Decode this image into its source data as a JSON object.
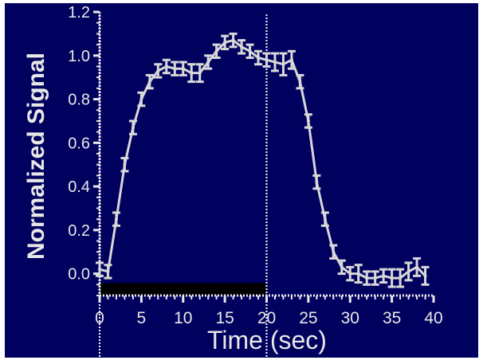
{
  "colors": {
    "background": "#00005f",
    "border": "#ffffff",
    "axis": "#e8e8e8",
    "series": "#d8d8d8",
    "stimulus_bar": "#000000",
    "marker_line": "#ffffff"
  },
  "chart_data": {
    "type": "line",
    "title": "",
    "xlabel": "Time  (sec)",
    "ylabel": "Normalized Signal",
    "xlim": [
      0,
      40
    ],
    "ylim": [
      -0.1,
      1.2
    ],
    "xticks": [
      0,
      5,
      10,
      15,
      20,
      25,
      30,
      35,
      40
    ],
    "yticks": [
      0.0,
      0.2,
      0.4,
      0.6,
      0.8,
      1.0,
      1.2
    ],
    "ytick_labels": [
      "0.0",
      "0.2",
      "0.4",
      "0.6",
      "0.8",
      "1.0",
      "1.2"
    ],
    "grid": false,
    "legend": "none",
    "stimulus": {
      "start": 0,
      "end": 20,
      "y_from": -0.1,
      "y_to": -0.05
    },
    "marker_lines_x": [
      0,
      20
    ],
    "series": [
      {
        "x": [
          0,
          1,
          2,
          3,
          4,
          5,
          6,
          7,
          8,
          9,
          10,
          11,
          12,
          13,
          14,
          15,
          16,
          17,
          18,
          19,
          20,
          21,
          22,
          23,
          24,
          25,
          26,
          27,
          28,
          29,
          30,
          31,
          32,
          33,
          34,
          35,
          36,
          37,
          38,
          39
        ],
        "values": [
          0.02,
          0.01,
          0.25,
          0.5,
          0.67,
          0.8,
          0.88,
          0.93,
          0.95,
          0.94,
          0.94,
          0.92,
          0.92,
          0.97,
          1.02,
          1.06,
          1.07,
          1.04,
          1.02,
          0.99,
          0.98,
          0.97,
          0.96,
          0.98,
          0.88,
          0.7,
          0.42,
          0.25,
          0.1,
          0.03,
          0.0,
          0.0,
          -0.02,
          -0.02,
          -0.01,
          -0.02,
          -0.02,
          0.01,
          0.03,
          -0.01
        ],
        "errors": [
          0.03,
          0.03,
          0.03,
          0.03,
          0.03,
          0.03,
          0.03,
          0.03,
          0.03,
          0.03,
          0.03,
          0.04,
          0.04,
          0.03,
          0.03,
          0.03,
          0.03,
          0.03,
          0.03,
          0.03,
          0.03,
          0.04,
          0.05,
          0.04,
          0.03,
          0.03,
          0.03,
          0.03,
          0.03,
          0.03,
          0.03,
          0.04,
          0.03,
          0.03,
          0.03,
          0.04,
          0.04,
          0.04,
          0.04,
          0.04
        ]
      }
    ]
  }
}
